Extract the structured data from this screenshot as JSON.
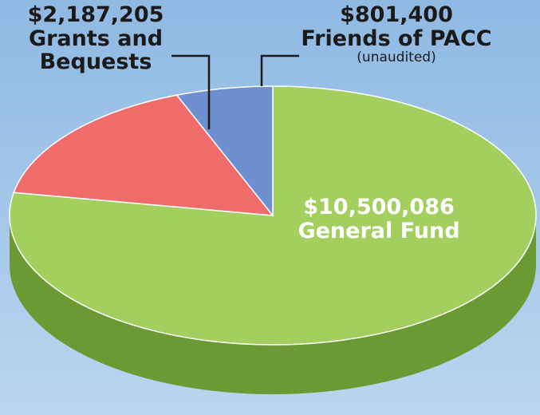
{
  "chart_data": {
    "type": "pie3d",
    "categories": [
      "General Fund",
      "Grants and Bequests",
      "Friends of PACC"
    ],
    "values": [
      10500086,
      2187205,
      801400
    ],
    "value_labels": [
      "$10,500,086",
      "$2,187,205",
      "$801,400"
    ],
    "colors": [
      "#a2cf5e",
      "#f06c6a",
      "#6e8fd0"
    ],
    "side_colors": [
      "#6b9a34",
      "#b84a48",
      "#4a65a0"
    ],
    "annotations": [
      "(unaudited)"
    ]
  }
}
